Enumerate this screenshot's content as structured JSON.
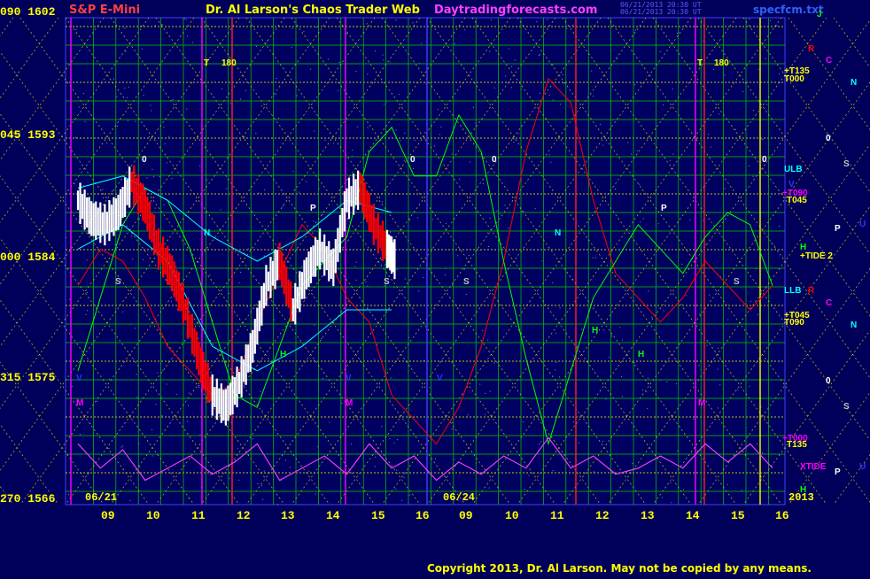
{
  "header": {
    "symbol": "S&P E-Mini",
    "site_title": "Dr. Al Larson's Chaos Trader Web",
    "url": "Daytradingforecasts.com",
    "stamp_line1": "06/21/2013 20:30 UT",
    "stamp_line2": "06/21/2013 20:30 UT",
    "file": "specfcm.txt"
  },
  "left_axis": [
    {
      "label": "090 1602",
      "value": 1602
    },
    {
      "label": "045 1593",
      "value": 1593
    },
    {
      "label": "000 1584",
      "value": 1584
    },
    {
      "label": "315 1575",
      "value": 1575
    },
    {
      "label": "270 1566",
      "value": 1566
    }
  ],
  "x_hours": [
    "09",
    "10",
    "11",
    "12",
    "13",
    "14",
    "15",
    "16",
    "09",
    "10",
    "11",
    "12",
    "13",
    "14",
    "15",
    "16"
  ],
  "date_labels": [
    "06/21",
    "06/24"
  ],
  "year_label": "2013",
  "copyright": "Copyright 2013, Dr. Al Larson. May not be copied by any means.",
  "right_labels": [
    {
      "text": "J",
      "color": "#00ff00"
    },
    {
      "text": "R",
      "color": "#ff0000"
    },
    {
      "text": "C",
      "color": "#ff00ff"
    },
    {
      "text": "+T135",
      "color": "#ffff00"
    },
    {
      "text": "T000",
      "color": "#ffff00"
    },
    {
      "text": "N",
      "color": "#00ffff"
    },
    {
      "text": "0",
      "color": "#ffffff"
    },
    {
      "text": "ULB",
      "color": "#00ffff"
    },
    {
      "text": "S",
      "color": "#c0c0c0"
    },
    {
      "text": "V",
      "color": "#3030ff"
    },
    {
      "text": "+T090",
      "color": "#ff00ff"
    },
    {
      "text": "T045",
      "color": "#ffff00"
    },
    {
      "text": "P",
      "color": "#ffffff"
    },
    {
      "text": "U",
      "color": "#3030ff"
    },
    {
      "text": "H",
      "color": "#00ff00"
    },
    {
      "text": "+TIDE 2",
      "color": "#ffff00"
    },
    {
      "text": "LLB",
      "color": "#00ffff"
    },
    {
      "text": "R",
      "color": "#ff0000"
    },
    {
      "text": "C",
      "color": "#ff00ff"
    },
    {
      "text": "+T045",
      "color": "#ffff00"
    },
    {
      "text": "T090",
      "color": "#ffff00"
    },
    {
      "text": "N",
      "color": "#00ffff"
    },
    {
      "text": "0",
      "color": "#ffffff"
    },
    {
      "text": "S",
      "color": "#c0c0c0"
    },
    {
      "text": "+T000",
      "color": "#ff00ff"
    },
    {
      "text": "T135",
      "color": "#ffff00"
    },
    {
      "text": "XTIDE",
      "color": "#ff00ff"
    },
    {
      "text": "P",
      "color": "#ffffff"
    },
    {
      "text": "U",
      "color": "#3030ff"
    },
    {
      "text": "H",
      "color": "#00ff00"
    }
  ],
  "markers": [
    {
      "text": "T",
      "color": "#ffff00"
    },
    {
      "text": "180",
      "color": "#ffff00"
    },
    {
      "text": "T",
      "color": "#ffff00"
    },
    {
      "text": "180",
      "color": "#ffff00"
    },
    {
      "text": "0",
      "color": "#ffffff"
    },
    {
      "text": "0",
      "color": "#ffffff"
    },
    {
      "text": "0",
      "color": "#ffffff"
    },
    {
      "text": "0",
      "color": "#ffffff"
    },
    {
      "text": "N",
      "color": "#00ffff"
    },
    {
      "text": "N",
      "color": "#00ffff"
    },
    {
      "text": "P",
      "color": "#ffffff"
    },
    {
      "text": "P",
      "color": "#ffffff"
    },
    {
      "text": "S",
      "color": "#c0c0c0"
    },
    {
      "text": "S",
      "color": "#c0c0c0"
    },
    {
      "text": "S",
      "color": "#c0c0c0"
    },
    {
      "text": "S",
      "color": "#c0c0c0"
    },
    {
      "text": "H",
      "color": "#00ff00"
    },
    {
      "text": "H",
      "color": "#00ff00"
    },
    {
      "text": "H",
      "color": "#00ff00"
    },
    {
      "text": "M",
      "color": "#ff00ff"
    },
    {
      "text": "M",
      "color": "#ff00ff"
    },
    {
      "text": "M",
      "color": "#ff00ff"
    },
    {
      "text": "V",
      "color": "#3030ff"
    },
    {
      "text": "V",
      "color": "#3030ff"
    },
    {
      "text": "V",
      "color": "#3030ff"
    }
  ],
  "colors": {
    "background": "#00005a",
    "grid_green": "#00cc00",
    "grid_yellow": "#ffff00",
    "price_bars": "#ffffff",
    "down_bars": "#ff0000",
    "cyan_band": "#00ffff",
    "red_wave": "#ff0000",
    "green_wave": "#00ff00",
    "tide": "#ff40ff"
  },
  "chart_data": {
    "type": "line",
    "title": "S&P E-Mini",
    "y_price_labels": [
      1602,
      1593,
      1584,
      1575,
      1566
    ],
    "y_angle_labels": [
      "090",
      "045",
      "000",
      "315",
      "270"
    ],
    "ylim": [
      1565,
      1605
    ],
    "x_categories": [
      "09",
      "10",
      "11",
      "12",
      "13",
      "14",
      "15",
      "16",
      "09",
      "10",
      "11",
      "12",
      "13",
      "14",
      "15",
      "16"
    ],
    "sessions": [
      "06/21",
      "06/24"
    ],
    "series": [
      {
        "name": "",
        "kind": "price",
        "x": [
          0,
          0.3,
          0.6,
          0.9,
          1.2,
          1.5,
          1.8,
          2.1,
          2.4,
          2.7,
          3.0,
          3.3,
          3.6,
          3.9,
          4.2,
          4.5,
          4.8,
          5.1,
          5.4,
          5.7,
          6.0,
          6.3,
          6.6,
          6.9,
          7.1
        ],
        "values": [
          1590,
          1588.5,
          1588,
          1589,
          1591.5,
          1589.5,
          1586,
          1584,
          1581,
          1577,
          1574,
          1573,
          1575,
          1578,
          1583,
          1585,
          1581,
          1584,
          1586,
          1584.5,
          1590,
          1591,
          1588,
          1586,
          1585
        ]
      },
      {
        "name": "",
        "kind": "red-wave",
        "x": [
          0,
          0.5,
          1,
          1.5,
          2,
          2.5,
          3,
          3.5,
          4,
          4.5,
          5,
          5.5,
          6,
          6.5,
          7,
          7.5,
          8,
          8.5,
          9,
          9.5,
          10,
          10.5,
          11,
          11.5,
          12,
          12.5,
          13,
          13.5,
          14,
          14.5,
          15,
          15.5
        ],
        "values": [
          1583,
          1586,
          1585,
          1582,
          1578,
          1576,
          1574,
          1575,
          1580,
          1584,
          1588,
          1586,
          1582,
          1580,
          1574,
          1572,
          1570,
          1573,
          1578,
          1585,
          1594,
          1600,
          1598,
          1590,
          1584,
          1582,
          1580,
          1582,
          1585,
          1583,
          1581,
          1583
        ]
      },
      {
        "name": "",
        "kind": "green-wave",
        "x": [
          0,
          0.5,
          1,
          1.5,
          2,
          2.5,
          3,
          3.5,
          4,
          4.5,
          5,
          5.5,
          6,
          6.5,
          7,
          7.5,
          8,
          8.5,
          9,
          9.5,
          10,
          10.5,
          11,
          11.5,
          12,
          12.5,
          13,
          13.5,
          14,
          14.5,
          15,
          15.5
        ],
        "values": [
          1576,
          1582,
          1588,
          1591,
          1590,
          1586,
          1580,
          1574,
          1573,
          1578,
          1583,
          1585,
          1587,
          1594,
          1596,
          1592,
          1592,
          1597,
          1594,
          1585,
          1577,
          1570,
          1576,
          1582,
          1585,
          1588,
          1586,
          1584,
          1587,
          1589,
          1588,
          1583
        ]
      },
      {
        "name": "",
        "kind": "cyan-upper",
        "x": [
          0,
          1,
          2,
          3,
          4,
          5,
          6,
          7
        ],
        "values": [
          1591,
          1592,
          1590,
          1587,
          1585,
          1587,
          1590,
          1589
        ]
      },
      {
        "name": "",
        "kind": "cyan-lower",
        "x": [
          0,
          1,
          2,
          3,
          4,
          5,
          6,
          7
        ],
        "values": [
          1586,
          1588,
          1585,
          1578,
          1576,
          1578,
          1581,
          1581
        ]
      },
      {
        "name": "",
        "kind": "tide",
        "x": [
          0,
          0.5,
          1,
          1.5,
          2,
          2.5,
          3,
          3.5,
          4,
          4.5,
          5,
          5.5,
          6,
          6.5,
          7,
          7.5,
          8,
          8.5,
          9,
          9.5,
          10,
          10.5,
          11,
          11.5,
          12,
          12.5,
          13,
          13.5,
          14,
          14.5,
          15,
          15.5
        ],
        "values": [
          1570,
          1568,
          1569.5,
          1567,
          1568,
          1569,
          1567.5,
          1568.5,
          1570,
          1567,
          1568,
          1569,
          1567.5,
          1570,
          1568,
          1569,
          1567,
          1568.5,
          1567.5,
          1569,
          1568,
          1570.5,
          1568,
          1569,
          1567.5,
          1568,
          1569,
          1568,
          1570,
          1568.5,
          1570,
          1568
        ]
      }
    ]
  }
}
